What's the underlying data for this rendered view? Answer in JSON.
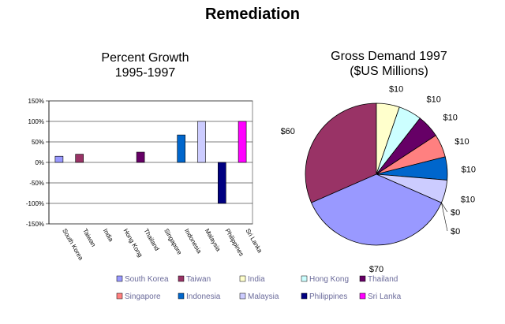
{
  "title": "Remediation",
  "chart_data": [
    {
      "type": "bar",
      "title": "Percent Growth\n1995-1997",
      "title_lines": [
        "Percent Growth",
        "1995-1997"
      ],
      "categories": [
        "South Korea",
        "Taiwan",
        "India",
        "Hong Kong",
        "Thailand",
        "Singapore",
        "Indonesia",
        "Malaysia",
        "Philippines",
        "Sri Lanka"
      ],
      "values": [
        15,
        20,
        0,
        0,
        25,
        0,
        67,
        100,
        -100,
        100
      ],
      "colors": [
        "#9999ff",
        "#993366",
        "#ffffcc",
        "#ccffff",
        "#660066",
        "#ff8080",
        "#0066cc",
        "#ccccff",
        "#000080",
        "#ff00ff"
      ],
      "ylim": [
        -150,
        150
      ],
      "yticks": [
        "150%",
        "100%",
        "50%",
        "0%",
        "-50%",
        "-100%",
        "-150%"
      ],
      "ytick_values": [
        150,
        100,
        50,
        0,
        -50,
        -100,
        -150
      ],
      "grid": true
    },
    {
      "type": "pie",
      "title": "Gross Demand 1997\n($US Millions)",
      "title_lines": [
        "Gross Demand 1997",
        "($US Millions)"
      ],
      "categories": [
        "Taiwan",
        "India",
        "Hong Kong",
        "Thailand",
        "Singapore",
        "Indonesia",
        "Malaysia",
        "Philippines",
        "Sri Lanka",
        "South Korea"
      ],
      "values": [
        60,
        10,
        10,
        10,
        10,
        10,
        10,
        0,
        0,
        70
      ],
      "labels": [
        "$60",
        "$10",
        "$10",
        "$10",
        "$10",
        "$10",
        "$10",
        "$0",
        "$0",
        "$70"
      ],
      "colors": [
        "#993366",
        "#ffffcc",
        "#ccffff",
        "#660066",
        "#ff8080",
        "#0066cc",
        "#ccccff",
        "#000080",
        "#ff00ff",
        "#9999ff"
      ]
    }
  ],
  "legend": {
    "placement": "bottom",
    "items": [
      {
        "label": "South Korea",
        "color": "#9999ff"
      },
      {
        "label": "Taiwan",
        "color": "#993366"
      },
      {
        "label": "India",
        "color": "#ffffcc"
      },
      {
        "label": "Hong Kong",
        "color": "#ccffff"
      },
      {
        "label": "Thailand",
        "color": "#660066"
      },
      {
        "label": "Singapore",
        "color": "#ff8080"
      },
      {
        "label": "Indonesia",
        "color": "#0066cc"
      },
      {
        "label": "Malaysia",
        "color": "#ccccff"
      },
      {
        "label": "Philippines",
        "color": "#000080"
      },
      {
        "label": "Sri Lanka",
        "color": "#ff00ff"
      }
    ]
  }
}
